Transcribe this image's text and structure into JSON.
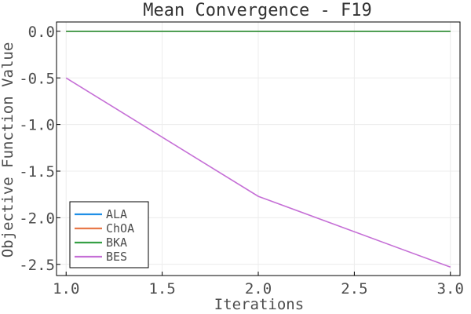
{
  "chart_data": {
    "type": "line",
    "title": "Mean Convergence - F19",
    "xlabel": "Iterations",
    "ylabel": "Objective Function Value",
    "xlim": [
      0.95,
      3.05
    ],
    "ylim": [
      -2.62,
      0.1
    ],
    "xticks": [
      1.0,
      1.5,
      2.0,
      2.5,
      3.0
    ],
    "xtick_labels": [
      "1.0",
      "1.5",
      "2.0",
      "2.5",
      "3.0"
    ],
    "yticks": [
      0.0,
      -0.5,
      -1.0,
      -1.5,
      -2.0,
      -2.5
    ],
    "ytick_labels": [
      "0.0",
      "-0.5",
      "-1.0",
      "-1.5",
      "-2.0",
      "-2.5"
    ],
    "grid": true,
    "legend_position": "bottom-left",
    "x": [
      1,
      2,
      3
    ],
    "series": [
      {
        "name": "ALA",
        "color": "#1f8fe6",
        "values": [
          0.0,
          0.0,
          0.0
        ]
      },
      {
        "name": "ChOA",
        "color": "#e8794a",
        "values": [
          0.0,
          0.0,
          0.0
        ]
      },
      {
        "name": "BKA",
        "color": "#36a045",
        "values": [
          0.0,
          0.0,
          0.0
        ]
      },
      {
        "name": "BES",
        "color": "#c56fd6",
        "values": [
          -0.5,
          -1.77,
          -2.53
        ]
      }
    ]
  }
}
